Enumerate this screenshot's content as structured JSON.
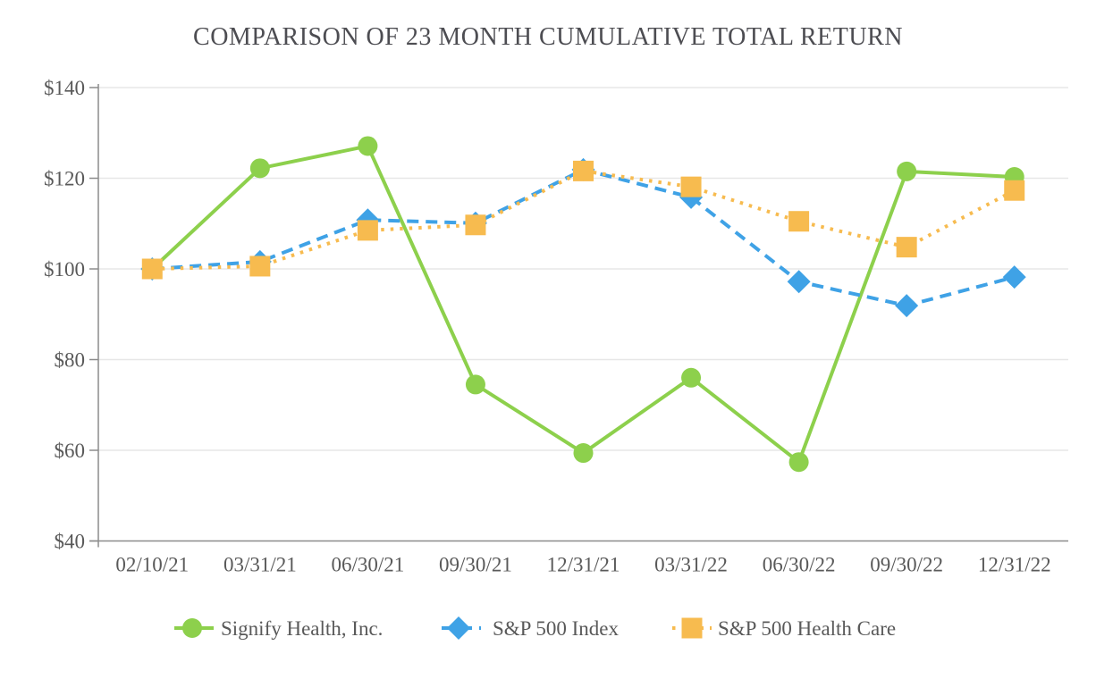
{
  "chart_data": {
    "type": "line",
    "title": "COMPARISON OF 23 MONTH CUMULATIVE TOTAL RETURN",
    "categories": [
      "02/10/21",
      "03/31/21",
      "06/30/21",
      "09/30/21",
      "12/31/21",
      "03/31/22",
      "06/30/22",
      "09/30/22",
      "12/31/22"
    ],
    "series": [
      {
        "name": "Signify Health, Inc.",
        "marker": "circle",
        "line_style": "solid",
        "color": "#8dd04c",
        "values": [
          100.0,
          122.2,
          127.1,
          74.5,
          59.4,
          76.0,
          57.4,
          121.5,
          120.3
        ]
      },
      {
        "name": "S&P 500 Index",
        "marker": "diamond",
        "line_style": "dashed",
        "color": "#3fa2e6",
        "values": [
          100.0,
          101.6,
          110.8,
          110.1,
          121.9,
          115.8,
          97.2,
          91.9,
          98.2
        ]
      },
      {
        "name": "S&P 500 Health Care",
        "marker": "square",
        "line_style": "dotted",
        "color": "#f7bb4f",
        "values": [
          100.0,
          100.6,
          108.5,
          109.7,
          121.6,
          118.1,
          110.5,
          104.8,
          117.3
        ]
      }
    ],
    "y_axis": {
      "min": 40,
      "max": 140,
      "step": 20,
      "tick_labels": [
        "$40",
        "$60",
        "$80",
        "$100",
        "$120",
        "$140"
      ]
    },
    "x_axis": {
      "tick_labels": [
        "02/10/21",
        "03/31/21",
        "06/30/21",
        "09/30/21",
        "12/31/21",
        "03/31/22",
        "06/30/22",
        "09/30/22",
        "12/31/22"
      ]
    },
    "grid": true,
    "legend_position": "bottom",
    "colors": {
      "gridline": "#e7e7e7",
      "axis": "#8c8c8c",
      "label_text": "#595959",
      "title_text": "#4d4d52"
    }
  }
}
